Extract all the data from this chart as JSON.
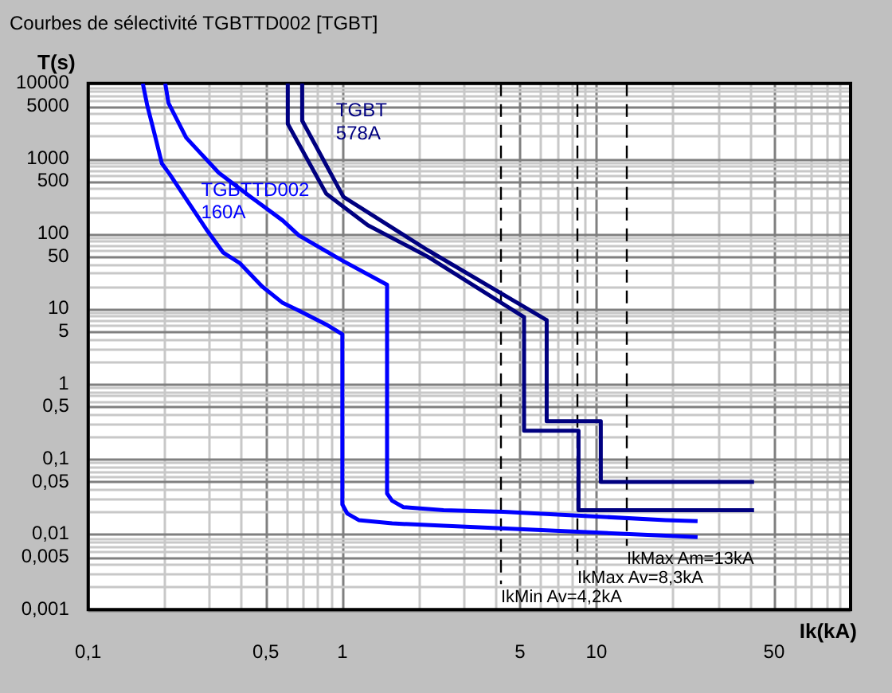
{
  "chart_data": {
    "type": "line",
    "title": "Courbes de sélectivité TGBTTD002 [TGBT]",
    "xlabel": "Ik(kA)",
    "ylabel": "T(s)",
    "log": "xy",
    "grid": true,
    "legend": false,
    "line_style": "solid",
    "xlim": [
      0.1,
      100
    ],
    "ylim": [
      0.001,
      10000
    ],
    "xticks": [
      {
        "value": 0.1,
        "label": "0,1"
      },
      {
        "value": 0.5,
        "label": "0,5"
      },
      1,
      5,
      10,
      50
    ],
    "yticks": [
      {
        "value": 0.001,
        "label": "0,001"
      },
      {
        "value": 0.005,
        "label": "0,005"
      },
      {
        "value": 0.01,
        "label": "0,01"
      },
      {
        "value": 0.05,
        "label": "0,05"
      },
      {
        "value": 0.1,
        "label": "0,1"
      },
      {
        "value": 0.5,
        "label": "0,5"
      },
      1,
      5,
      10,
      50,
      100,
      500,
      1000,
      5000,
      10000
    ],
    "series": [
      {
        "color": "#0000ff",
        "x": [
          0.164,
          0.171,
          0.182,
          0.195,
          0.21,
          0.294,
          0.34,
          0.394,
          0.483,
          0.583,
          0.675,
          0.865,
          1,
          1,
          1.045,
          1.16,
          1.57,
          2.5,
          25
        ],
        "values": [
          10000,
          5000,
          2200,
          860,
          610,
          110,
          56,
          41,
          20,
          12,
          9.5,
          6.2,
          4.6,
          0.025,
          0.019,
          0.0155,
          0.014,
          0.013,
          0.0092
        ]
      },
      {
        "color": "#0000ff",
        "x": [
          0.201,
          0.207,
          0.243,
          0.326,
          0.436,
          0.583,
          0.675,
          1,
          1.5,
          1.5,
          1.57,
          1.74,
          2.5,
          4.3,
          18.7,
          25
        ],
        "values": [
          10000,
          5500,
          1900,
          650,
          310,
          150,
          95,
          44,
          21,
          0.035,
          0.028,
          0.023,
          0.021,
          0.02,
          0.0155,
          0.015
        ]
      },
      {
        "color": "#000080",
        "x": [
          0.61,
          0.61,
          0.865,
          1.26,
          2.16,
          5.19,
          5.19,
          8.5,
          8.5,
          41.7
        ],
        "values": [
          10000,
          2900,
          340,
          130,
          50,
          7.8,
          0.24,
          0.24,
          0.021,
          0.021
        ]
      },
      {
        "color": "#000080",
        "x": [
          0.695,
          0.695,
          1.01,
          2.16,
          6.37,
          6.37,
          10.4,
          10.4,
          41.7
        ],
        "values": [
          10000,
          3200,
          310,
          61,
          7.1,
          0.32,
          0.32,
          0.05,
          0.05
        ]
      }
    ],
    "ref_lines": [
      {
        "axis": "x",
        "value": 4.2,
        "label": "IkMin Av=4,2kA",
        "color": "#000000",
        "line_style": "dashed"
      },
      {
        "axis": "x",
        "value": 8.3,
        "label": "IkMax Av=8,3kA",
        "color": "#000000",
        "line_style": "dashed"
      },
      {
        "axis": "x",
        "value": 13,
        "label": "IkMax Am=13kA",
        "color": "#000000",
        "line_style": "dashed"
      }
    ],
    "annotations": [
      "TGBT",
      "578A",
      "TGBTTD002",
      "160A"
    ]
  }
}
